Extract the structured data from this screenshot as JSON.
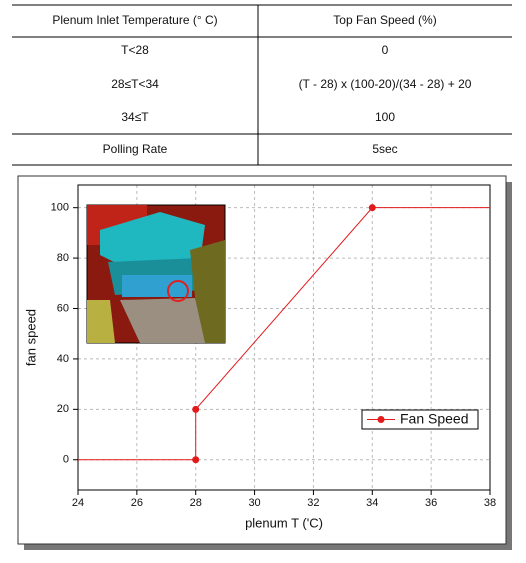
{
  "table": {
    "header": [
      "Plenum Inlet Temperature  (° C)",
      "Top Fan Speed (%)"
    ],
    "rows": [
      [
        "T<28",
        "0"
      ],
      [
        "28≤T<34",
        "(T - 28) x (100-20)/(34  - 28) + 20"
      ],
      [
        "34≤T",
        "100"
      ],
      [
        "Polling Rate",
        "5sec"
      ]
    ]
  },
  "chart_data": {
    "type": "line",
    "x_label": "plenum T ('C)",
    "y_label": "fan speed",
    "x": [
      24,
      28,
      28,
      34,
      38
    ],
    "series": [
      {
        "name": "Fan Speed",
        "color": "#e31a1c",
        "values": [
          0,
          0,
          20,
          100,
          100
        ],
        "markers": [
          false,
          true,
          true,
          true,
          false
        ]
      }
    ],
    "xlim": [
      24,
      38
    ],
    "xticks": [
      24,
      26,
      28,
      30,
      32,
      34,
      36,
      38
    ],
    "ylim": [
      -12,
      109
    ],
    "yticks": [
      0,
      20,
      40,
      60,
      80,
      100
    ],
    "grid": true,
    "legend": "lower right"
  }
}
